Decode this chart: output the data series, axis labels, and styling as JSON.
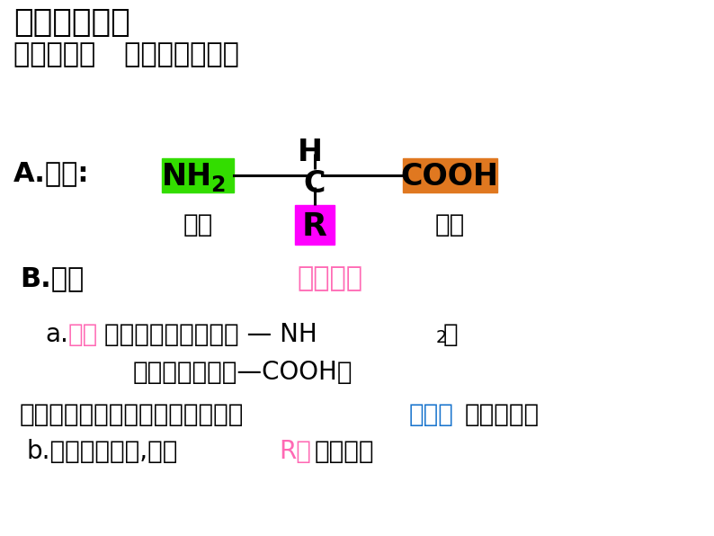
{
  "bg_color": "#ffffff",
  "title1": "》合作学习》",
  "title1_display": "【合作学习】",
  "title2_display": "合作探究一   氨基酸分子结构",
  "title1_fontsize": 26,
  "title2_fontsize": 22,
  "label_A": "A.通式:",
  "label_B": "B.特点",
  "label_side_chain": "侧链基团",
  "label_amino": "氨基",
  "label_carboxyl": "羧基",
  "label_H": "H",
  "label_C": "C",
  "label_COOH": "COOH",
  "label_R": "R",
  "nh2_box_color": "#33dd00",
  "cooh_box_color": "#e07820",
  "r_box_color": "#ff00ff",
  "pink_color": "#ff69b4",
  "blue_color": "#1874cd",
  "black_color": "#000000",
  "main_fontsize": 20,
  "diagram_fontsize": 22
}
